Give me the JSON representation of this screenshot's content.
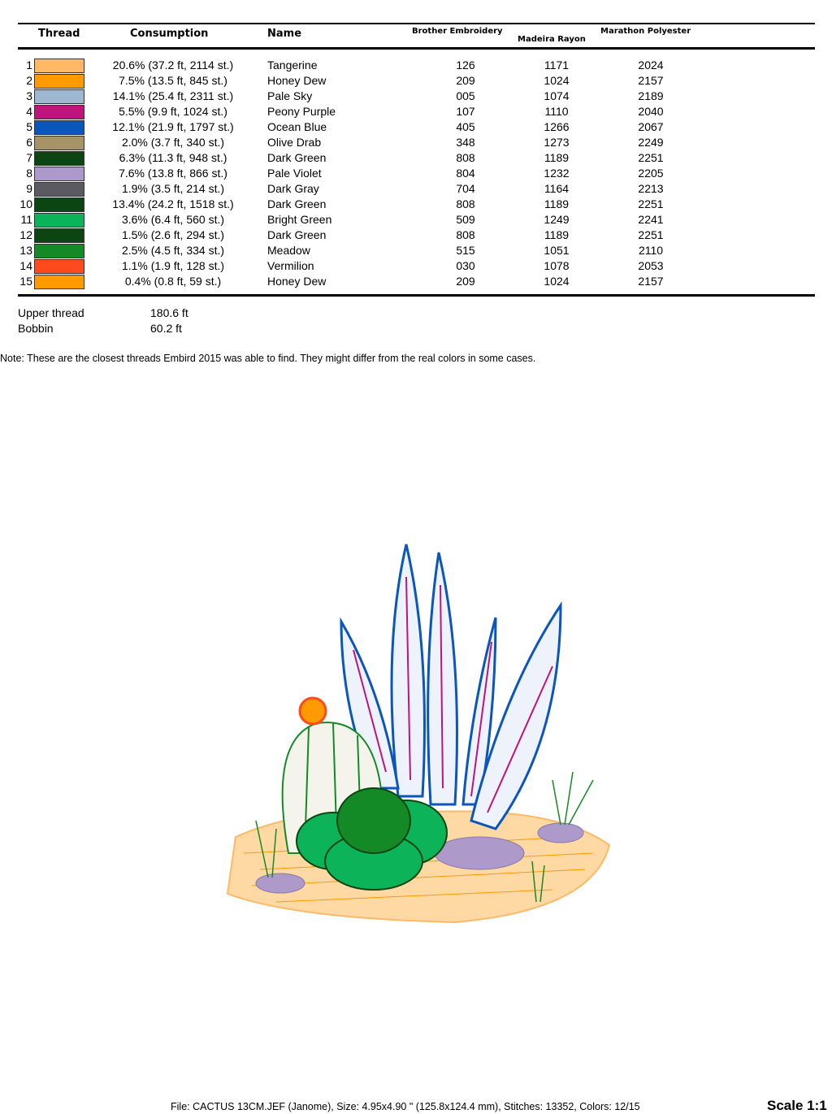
{
  "table": {
    "headers": {
      "thread": "Thread",
      "consumption": "Consumption",
      "name": "Name",
      "brother": "Brother Embroidery",
      "madeira": "Madeira Rayon",
      "marathon": "Marathon Polyester"
    },
    "rows": [
      {
        "num": "1",
        "color": "#FFB866",
        "consumption": "20.6% (37.2 ft, 2114 st.)",
        "name": "Tangerine",
        "brother": "126",
        "madeira": "1171",
        "marathon": "2024"
      },
      {
        "num": "2",
        "color": "#FF9A00",
        "consumption": "7.5% (13.5 ft, 845 st.)",
        "name": "Honey Dew",
        "brother": "209",
        "madeira": "1024",
        "marathon": "2157"
      },
      {
        "num": "3",
        "color": "#9DB8D2",
        "consumption": "14.1% (25.4 ft, 2311 st.)",
        "name": "Pale Sky",
        "brother": "005",
        "madeira": "1074",
        "marathon": "2189"
      },
      {
        "num": "4",
        "color": "#C0137E",
        "consumption": "5.5% (9.9 ft, 1024 st.)",
        "name": "Peony Purple",
        "brother": "107",
        "madeira": "1110",
        "marathon": "2040"
      },
      {
        "num": "5",
        "color": "#0B56BC",
        "consumption": "12.1% (21.9 ft, 1797 st.)",
        "name": "Ocean Blue",
        "brother": "405",
        "madeira": "1266",
        "marathon": "2067"
      },
      {
        "num": "6",
        "color": "#A69468",
        "consumption": "2.0% (3.7 ft, 340 st.)",
        "name": "Olive Drab",
        "brother": "348",
        "madeira": "1273",
        "marathon": "2249"
      },
      {
        "num": "7",
        "color": "#0A4512",
        "consumption": "6.3% (11.3 ft, 948 st.)",
        "name": "Dark Green",
        "brother": "808",
        "madeira": "1189",
        "marathon": "2251"
      },
      {
        "num": "8",
        "color": "#AD9ACB",
        "consumption": "7.6% (13.8 ft, 866 st.)",
        "name": "Pale Violet",
        "brother": "804",
        "madeira": "1232",
        "marathon": "2205"
      },
      {
        "num": "9",
        "color": "#5A5A60",
        "consumption": "1.9% (3.5 ft, 214 st.)",
        "name": "Dark Gray",
        "brother": "704",
        "madeira": "1164",
        "marathon": "2213"
      },
      {
        "num": "10",
        "color": "#0A4512",
        "consumption": "13.4% (24.2 ft, 1518 st.)",
        "name": "Dark Green",
        "brother": "808",
        "madeira": "1189",
        "marathon": "2251"
      },
      {
        "num": "11",
        "color": "#0DB358",
        "consumption": "3.6% (6.4 ft, 560 st.)",
        "name": "Bright Green",
        "brother": "509",
        "madeira": "1249",
        "marathon": "2241"
      },
      {
        "num": "12",
        "color": "#0A4512",
        "consumption": "1.5% (2.6 ft, 294 st.)",
        "name": "Dark Green",
        "brother": "808",
        "madeira": "1189",
        "marathon": "2251"
      },
      {
        "num": "13",
        "color": "#138A26",
        "consumption": "2.5% (4.5 ft, 334 st.)",
        "name": "Meadow",
        "brother": "515",
        "madeira": "1051",
        "marathon": "2110"
      },
      {
        "num": "14",
        "color": "#FF4A1E",
        "consumption": "1.1% (1.9 ft, 128 st.)",
        "name": "Vermilion",
        "brother": "030",
        "madeira": "1078",
        "marathon": "2053"
      },
      {
        "num": "15",
        "color": "#FF9A00",
        "consumption": "0.4% (0.8 ft, 59 st.)",
        "name": "Honey Dew",
        "brother": "209",
        "madeira": "1024",
        "marathon": "2157"
      }
    ]
  },
  "totals": {
    "upper_label": "Upper thread",
    "upper_value": "180.6 ft",
    "bobbin_label": "Bobbin",
    "bobbin_value": "60.2 ft"
  },
  "note": "Note: These are the closest threads Embird 2015 was able to find. They might differ from the real colors in some cases.",
  "footer": "File: CACTUS 13CM.JEF (Janome), Size: 4.95x4.90 \" (125.8x124.4 mm), Stitches: 13352, Colors: 12/15",
  "scale": "Scale 1:1"
}
